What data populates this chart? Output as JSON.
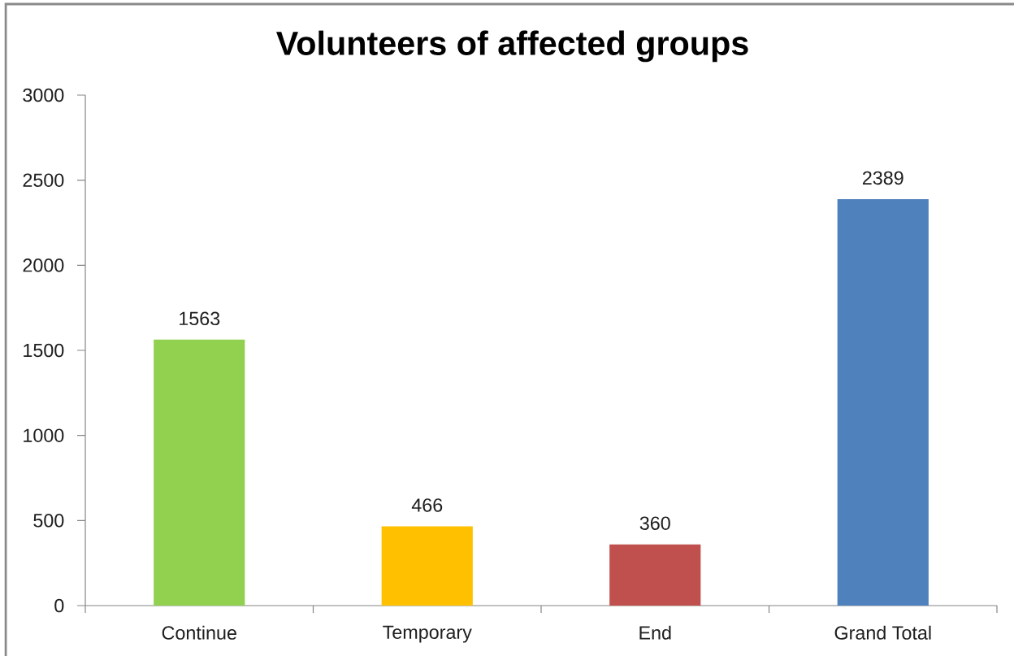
{
  "chart_data": {
    "type": "bar",
    "title": "Volunteers of affected groups",
    "categories": [
      "Continue",
      "Temporary",
      "End",
      "Grand Total"
    ],
    "values": [
      1563,
      466,
      360,
      2389
    ],
    "colors": [
      "#92d050",
      "#ffc000",
      "#c0504d",
      "#4f81bd"
    ],
    "ylim": [
      0,
      3000
    ],
    "yticks": [
      0,
      500,
      1000,
      1500,
      2000,
      2500,
      3000
    ],
    "data_labels": true
  }
}
